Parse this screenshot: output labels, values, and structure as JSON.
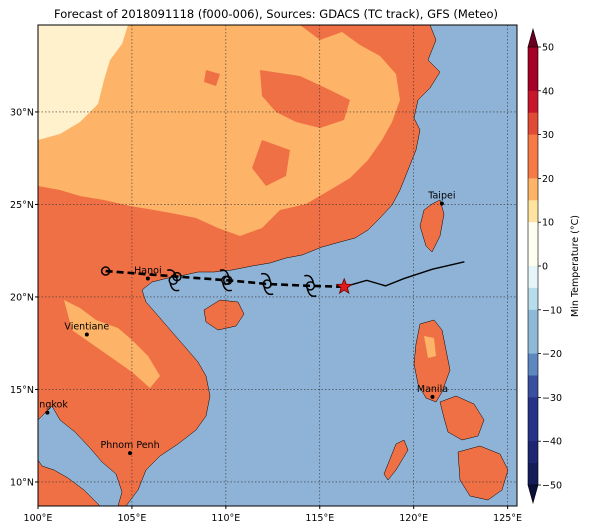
{
  "title": "Forecast of 2018091118 (f000-006), Sources: GDACS (TC track), GFS (Meteo)",
  "map": {
    "lon_range": [
      100,
      125.5
    ],
    "lat_range": [
      8.7,
      34.7
    ],
    "lon_ticks": [
      {
        "value": 100,
        "label": "100°E"
      },
      {
        "value": 105,
        "label": "105°E"
      },
      {
        "value": 110,
        "label": "110°E"
      },
      {
        "value": 115,
        "label": "115°E"
      },
      {
        "value": 120,
        "label": "120°E"
      },
      {
        "value": 125,
        "label": "125°E"
      }
    ],
    "lat_ticks": [
      {
        "value": 10,
        "label": "10°N"
      },
      {
        "value": 15,
        "label": "15°N"
      },
      {
        "value": 20,
        "label": "20°N"
      },
      {
        "value": 25,
        "label": "25°N"
      },
      {
        "value": 30,
        "label": "30°N"
      }
    ],
    "grid": true,
    "colors": {
      "sea": "#8fb3d6",
      "warm_20_30": "#f07045",
      "mild_10_20": "#fdb468",
      "cool_0_10": "#fff1cc",
      "track": "#000000",
      "storm_marker": "#e11b1b"
    }
  },
  "cities": [
    {
      "name": "Taipei",
      "lon": 121.5,
      "lat": 25.05
    },
    {
      "name": "Hanoi",
      "lon": 105.85,
      "lat": 21.0
    },
    {
      "name": "Vientiane",
      "lon": 102.6,
      "lat": 17.97
    },
    {
      "name": "Manila",
      "lon": 121.0,
      "lat": 14.6
    },
    {
      "name": "Bangkok",
      "lon": 100.5,
      "lat": 13.75
    },
    {
      "name": "Phnom Penh",
      "lon": 104.9,
      "lat": 11.56
    }
  ],
  "track": {
    "forecast": [
      {
        "lon": 103.6,
        "lat": 21.4,
        "symbol": "circle"
      },
      {
        "lon": 107.4,
        "lat": 21.1,
        "symbol": "circle"
      },
      {
        "lon": 110.1,
        "lat": 20.9,
        "symbol": "circle"
      },
      {
        "lon": 112.2,
        "lat": 20.7,
        "symbol": "cyclone"
      },
      {
        "lon": 114.5,
        "lat": 20.6,
        "symbol": "cyclone"
      },
      {
        "lon": 116.3,
        "lat": 20.55,
        "symbol": "star"
      }
    ],
    "extra_symbols": [
      {
        "lon": 107.2,
        "lat": 20.9
      },
      {
        "lon": 110.0,
        "lat": 20.9
      }
    ],
    "past": [
      {
        "lon": 116.3,
        "lat": 20.55
      },
      {
        "lon": 117.5,
        "lat": 20.9
      },
      {
        "lon": 118.5,
        "lat": 20.6
      },
      {
        "lon": 119.5,
        "lat": 21.0
      },
      {
        "lon": 121.0,
        "lat": 21.5
      },
      {
        "lon": 122.7,
        "lat": 21.9
      }
    ]
  },
  "colorbar": {
    "label": "Min Temperature (°C)",
    "ticks": [
      50,
      40,
      30,
      20,
      10,
      0,
      -10,
      -20,
      -30,
      -40,
      -50
    ],
    "tick_labels": [
      "50",
      "40",
      "30",
      "20",
      "10",
      "0",
      "−10",
      "−20",
      "−30",
      "−40",
      "−50"
    ],
    "colors_top_to_bottom": [
      "#7d0025",
      "#a50026",
      "#d73027",
      "#f46d43",
      "#fdae61",
      "#fee090",
      "#ffffbf",
      "#e0f3f8",
      "#abd9e9",
      "#74add1",
      "#4575b4",
      "#313695",
      "#26337a",
      "#1f2a66",
      "#16205a"
    ]
  }
}
